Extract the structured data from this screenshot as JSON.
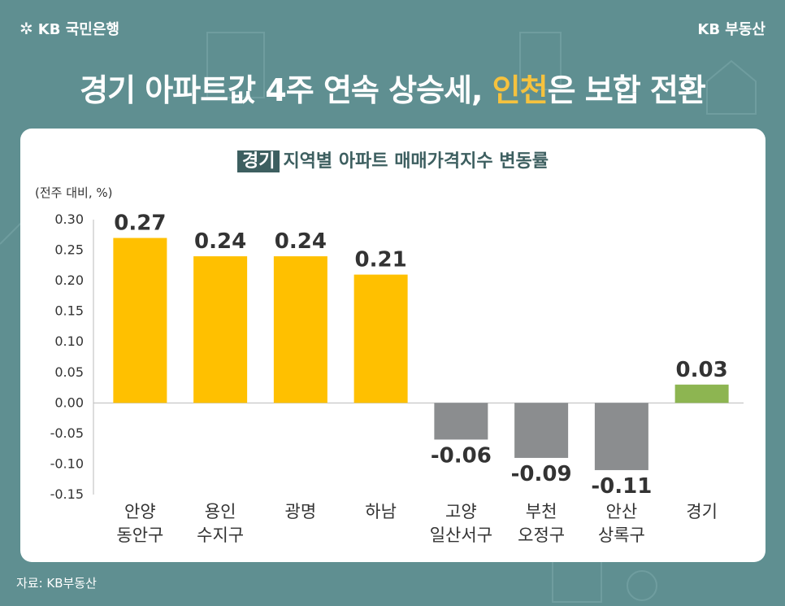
{
  "brand": {
    "bank": "KB 국민은행",
    "realty": "KB 부동산"
  },
  "headline": {
    "part1": "경기 아파트값 4주 연속 상승세, ",
    "highlight": "인천",
    "part2": "은 보합 전환"
  },
  "subtitle": {
    "tag": "경기",
    "text": "지역별 아파트 매매가격지수 변동률"
  },
  "unit_label": "(전주 대비, %)",
  "source": "자료: KB부동산",
  "colors": {
    "background": "#5f8f91",
    "rise": "#ffc000",
    "fall": "#8b8d8f",
    "total": "#8db551",
    "highlight": "#f6c23e"
  },
  "chart_data": {
    "type": "bar",
    "categories": [
      [
        "안양",
        "동안구"
      ],
      [
        "용인",
        "수지구"
      ],
      [
        "광명"
      ],
      [
        "하남"
      ],
      [
        "고양",
        "일산서구"
      ],
      [
        "부천",
        "오정구"
      ],
      [
        "안산",
        "상록구"
      ],
      [
        "경기"
      ]
    ],
    "values": [
      0.27,
      0.24,
      0.24,
      0.21,
      -0.06,
      -0.09,
      -0.11,
      0.03
    ],
    "value_labels": [
      "0.27",
      "0.24",
      "0.24",
      "0.21",
      "-0.06",
      "-0.09",
      "-0.11",
      "0.03"
    ],
    "yticks": [
      "0.30",
      "0.25",
      "0.20",
      "0.15",
      "0.10",
      "0.05",
      "0.00",
      "-0.05",
      "-0.10",
      "-0.15"
    ],
    "ylim": [
      -0.15,
      0.3
    ],
    "grid": false
  }
}
